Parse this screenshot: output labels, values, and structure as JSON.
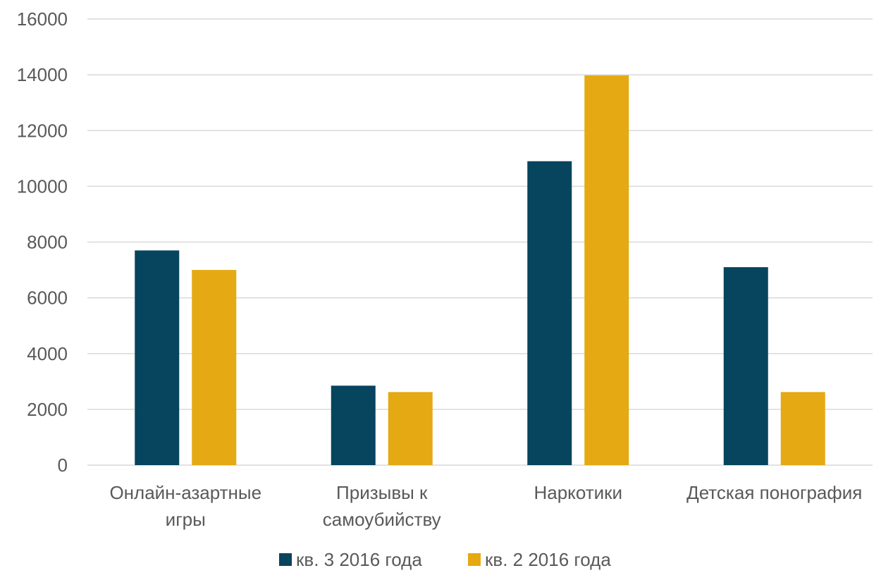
{
  "chart_data": {
    "type": "bar",
    "categories": [
      [
        "Онлайн-азартные",
        "игры"
      ],
      [
        "Призывы к",
        "самоубийству"
      ],
      [
        "Наркотики"
      ],
      [
        "Детская понография"
      ]
    ],
    "series": [
      {
        "name": "кв. 3 2016 года",
        "color": "#07445e",
        "values": [
          7700,
          2850,
          10900,
          7100
        ]
      },
      {
        "name": "кв. 2 2016 года",
        "color": "#e5a913",
        "values": [
          7000,
          2620,
          13980,
          2620
        ]
      }
    ],
    "ylim": [
      0,
      16000
    ],
    "yticks": [
      "0",
      "2000",
      "4000",
      "6000",
      "8000",
      "10000",
      "12000",
      "14000",
      "16000"
    ],
    "grid": true,
    "gridColor": "#d9d9d9",
    "legend_position": "bottom"
  }
}
